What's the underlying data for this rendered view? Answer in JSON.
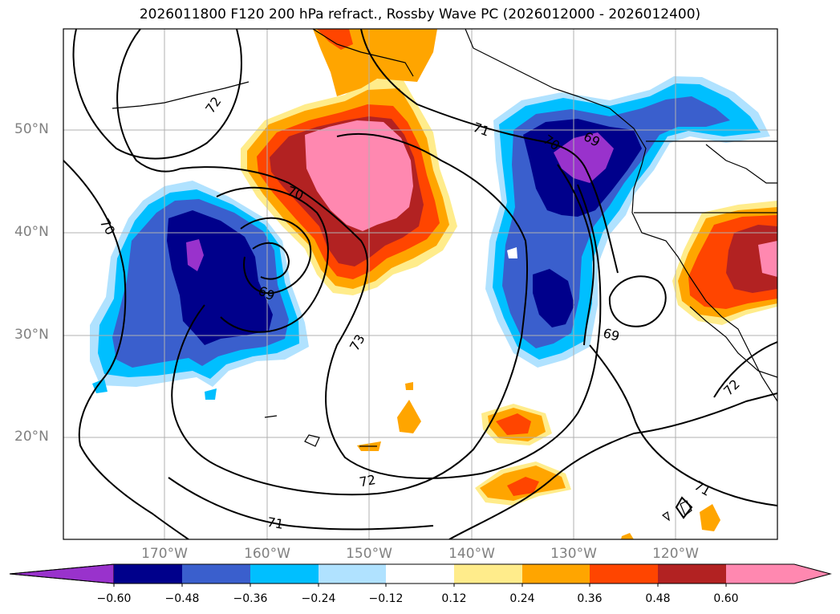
{
  "title": "2026011800 F120 200 hPa refract., Rossby Wave PC (2026012000 - 2026012400)",
  "lat_labels": [
    "50°N",
    "40°N",
    "30°N",
    "20°N"
  ],
  "lon_labels": [
    "170°W",
    "160°W",
    "150°W",
    "140°W",
    "130°W",
    "120°W"
  ],
  "contour_labels": [
    "72",
    "70",
    "69",
    "70",
    "73",
    "72",
    "71",
    "71",
    "70",
    "69",
    "69",
    "71",
    "72"
  ],
  "colorbar": {
    "ticks": [
      "−0.60",
      "−0.48",
      "−0.36",
      "−0.24",
      "−0.12",
      "0.12",
      "0.24",
      "0.36",
      "0.48",
      "0.60"
    ],
    "colors": [
      "#9932cc",
      "#00008b",
      "#3a5fcd",
      "#00bfff",
      "#b0e2ff",
      "#ffffff",
      "#ffec8b",
      "#ffa500",
      "#ff4500",
      "#b22222",
      "#ff88b0",
      "#ff88b0"
    ]
  }
}
